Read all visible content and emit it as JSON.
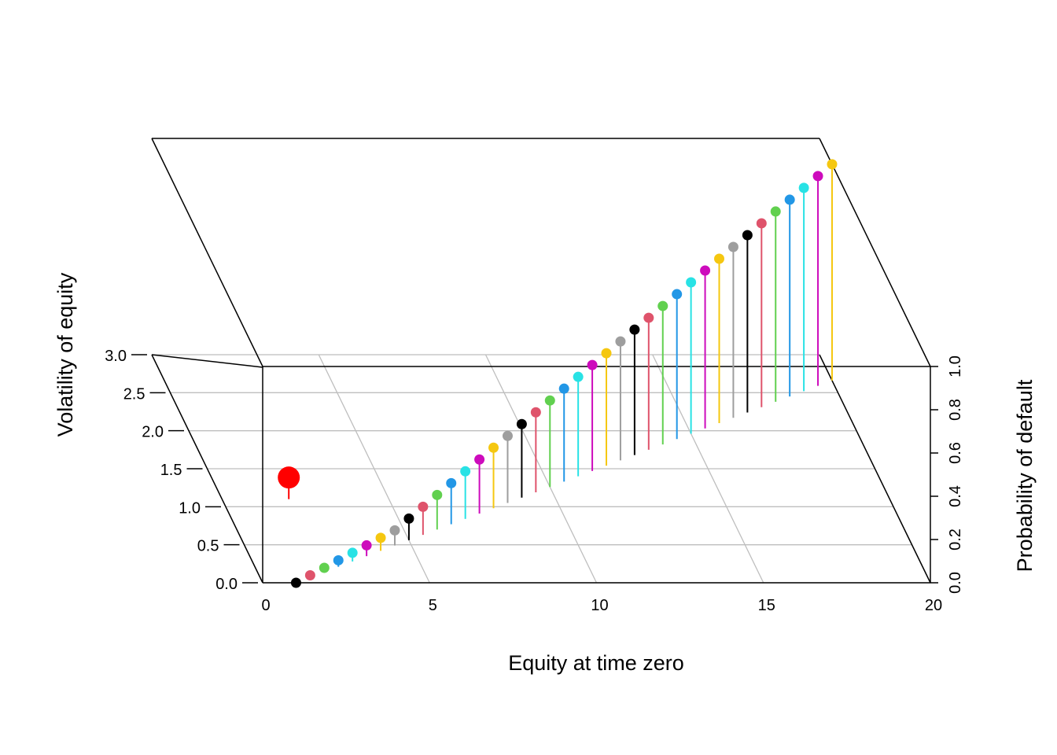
{
  "chart_data": {
    "type": "scatter3d",
    "title": "",
    "xlabel": "Equity at time zero",
    "ylabel": "Volatility of equity",
    "zlabel": "Probability of default",
    "xlim": [
      0,
      20
    ],
    "ylim": [
      0,
      3
    ],
    "zlim": [
      0,
      1
    ],
    "x_ticks": [
      "0",
      "5",
      "10",
      "15",
      "20"
    ],
    "y_ticks": [
      "0.0",
      "0.5",
      "1.0",
      "1.5",
      "2.0",
      "2.5",
      "3.0"
    ],
    "z_ticks": [
      "0.0",
      "0.2",
      "0.4",
      "0.6",
      "0.8",
      "1.0"
    ],
    "grid": true,
    "palette": [
      "#000000",
      "#DF536B",
      "#61D04F",
      "#2297E6",
      "#28E2E5",
      "#CD0BBC",
      "#F5C710",
      "#9E9E9E"
    ],
    "highlight_color": "#FF0000",
    "series": [
      {
        "x": [
          1.0,
          1.5,
          2.0,
          2.5,
          3.0,
          3.5,
          4.0,
          4.5,
          5.0,
          5.5,
          6.0,
          6.5,
          7.0,
          7.5,
          8.0,
          8.5,
          9.0,
          9.5,
          10.0,
          10.5,
          11.0,
          11.5,
          12.0,
          12.5,
          13.0,
          13.5,
          14.0,
          14.5,
          15.0,
          15.5,
          16.0,
          16.5,
          17.0,
          17.5,
          18.0,
          18.5,
          19.0,
          19.5,
          20.0
        ],
        "y": [
          0.0,
          0.07,
          0.14,
          0.21,
          0.28,
          0.35,
          0.42,
          0.49,
          0.56,
          0.63,
          0.7,
          0.77,
          0.84,
          0.91,
          0.98,
          1.05,
          1.12,
          1.19,
          1.26,
          1.33,
          1.4,
          1.47,
          1.54,
          1.61,
          1.68,
          1.75,
          1.82,
          1.89,
          1.96,
          2.03,
          2.1,
          2.17,
          2.24,
          2.31,
          2.38,
          2.45,
          2.52,
          2.59,
          2.66
        ],
        "z": [
          0.0,
          0.01,
          0.02,
          0.03,
          0.04,
          0.05,
          0.06,
          0.07,
          0.1,
          0.13,
          0.16,
          0.19,
          0.22,
          0.25,
          0.28,
          0.31,
          0.34,
          0.37,
          0.4,
          0.43,
          0.46,
          0.49,
          0.52,
          0.55,
          0.58,
          0.61,
          0.64,
          0.67,
          0.7,
          0.73,
          0.76,
          0.79,
          0.82,
          0.85,
          0.88,
          0.91,
          0.94,
          0.97,
          1.0
        ]
      },
      {
        "x": [
          2.0
        ],
        "y": [
          1.1
        ],
        "z": [
          0.1
        ],
        "highlight": true
      }
    ]
  }
}
